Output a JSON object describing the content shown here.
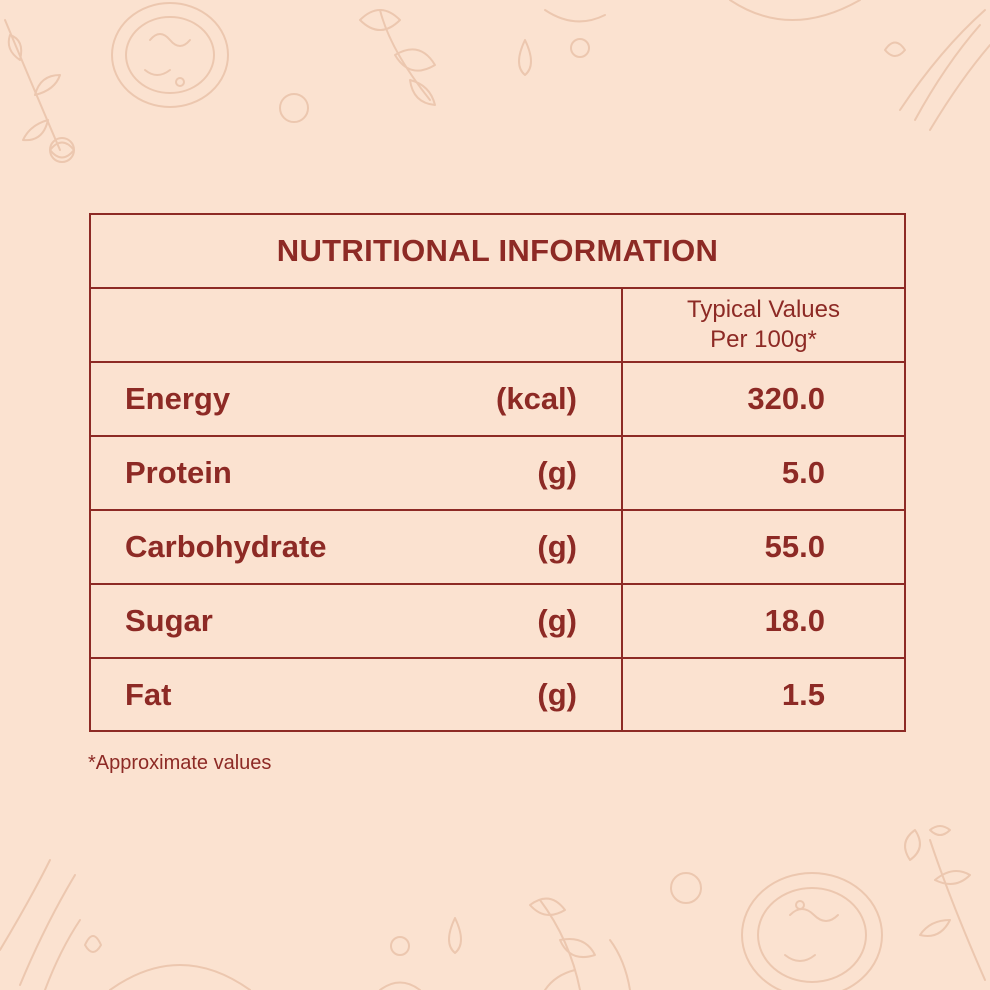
{
  "table": {
    "title": "NUTRITIONAL INFORMATION",
    "header": {
      "line1": "Typical Values",
      "line2": "Per 100g*"
    },
    "rows": [
      {
        "name": "Energy",
        "unit": "(kcal)",
        "value": "320.0"
      },
      {
        "name": "Protein",
        "unit": "(g)",
        "value": "5.0"
      },
      {
        "name": "Carbohydrate",
        "unit": "(g)",
        "value": "55.0"
      },
      {
        "name": "Sugar",
        "unit": "(g)",
        "value": "18.0"
      },
      {
        "name": "Fat",
        "unit": "(g)",
        "value": "1.5"
      }
    ]
  },
  "footnote": "*Approximate values",
  "colors": {
    "background": "#fbe2d0",
    "text_and_border": "#8d2a25",
    "doodle": "#ecc7af"
  },
  "decorations": [
    "tomato-slice-doodle",
    "parsley-doodle",
    "herb-sprig-doodle",
    "water-drop-doodle",
    "lemongrass-doodle"
  ]
}
